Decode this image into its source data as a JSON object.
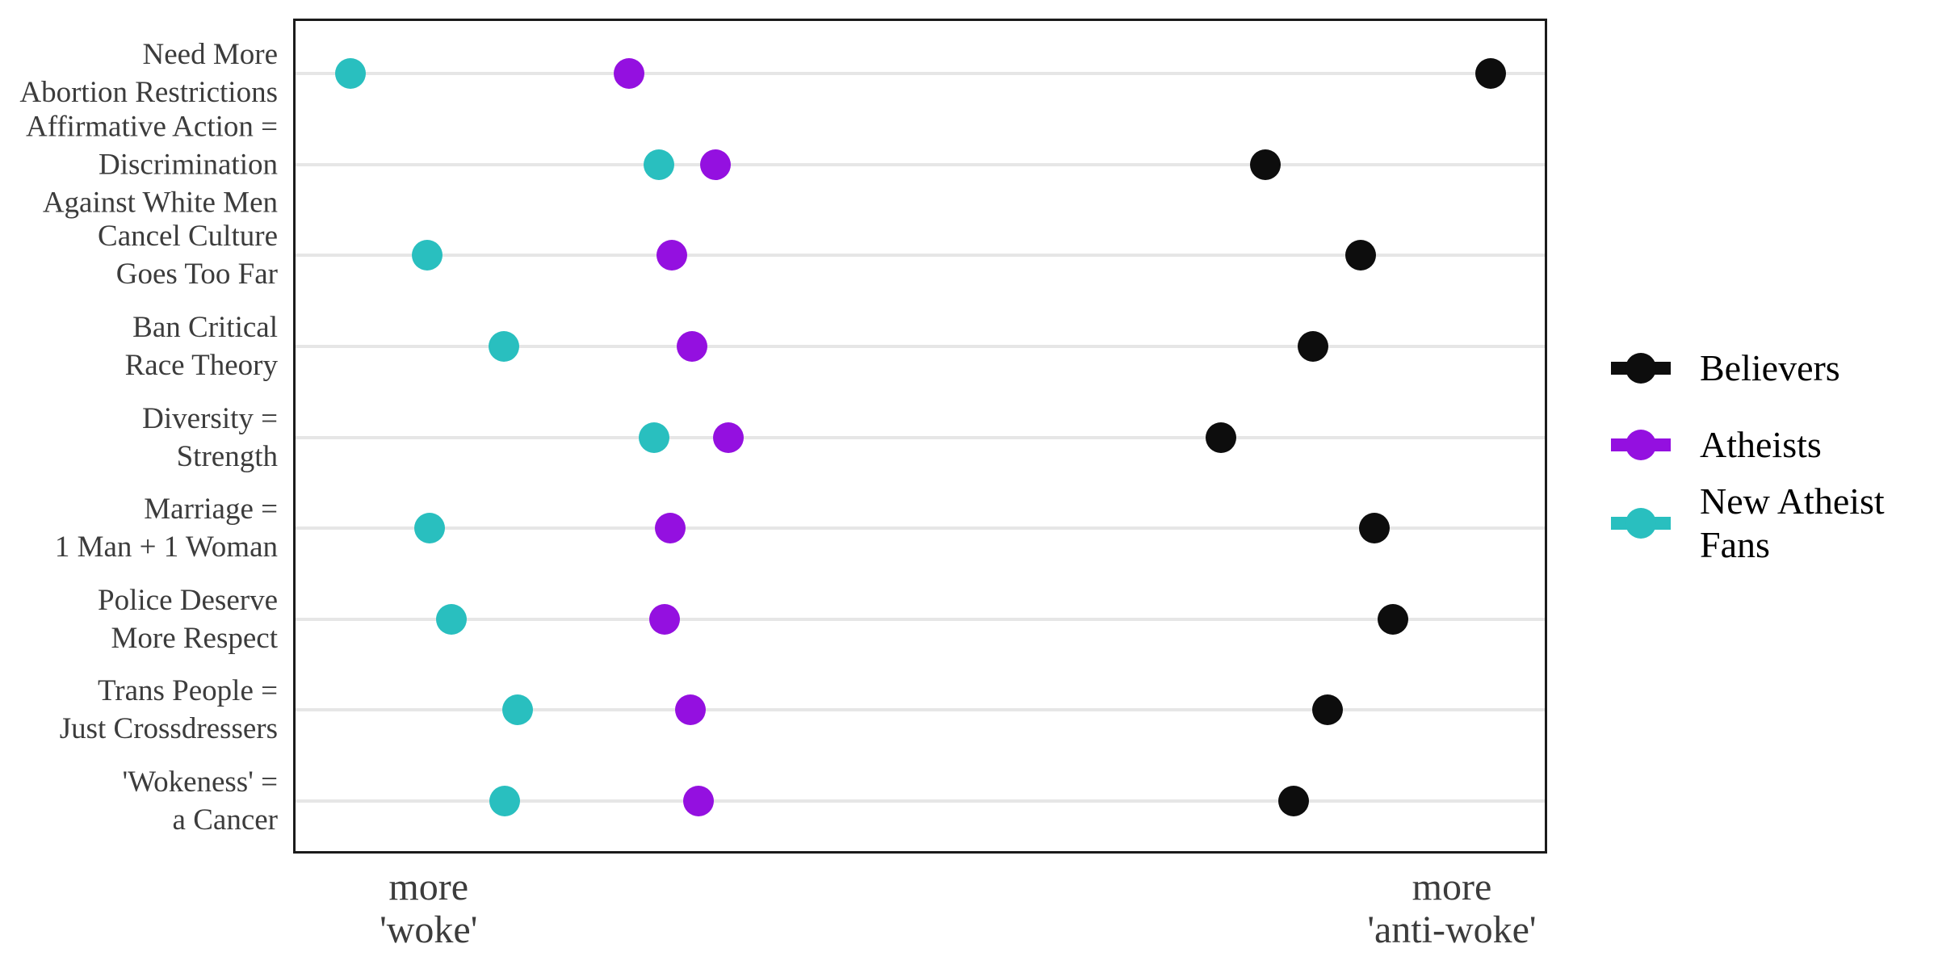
{
  "figure": {
    "background": "#FFFFFF"
  },
  "chart_data": {
    "type": "scatter",
    "variant": "horizontal-dot-plot",
    "title": "",
    "xlabel": "",
    "ylabel": "",
    "x_axis": {
      "range": [
        0,
        1
      ],
      "gridlines": "horizontal major only",
      "tick_labels": [
        {
          "lines": [
            "more",
            "'woke'"
          ],
          "position": 0.108
        },
        {
          "lines": [
            "more",
            "'anti-woke'"
          ],
          "position": 0.924
        }
      ]
    },
    "y_axis": {
      "categories": [
        {
          "lines": [
            "Need More",
            "Abortion Restrictions"
          ]
        },
        {
          "lines": [
            "Affirmative Action =",
            "Discrimination",
            "Against White Men"
          ]
        },
        {
          "lines": [
            "Cancel Culture",
            "Goes Too Far"
          ]
        },
        {
          "lines": [
            "Ban Critical",
            "Race Theory"
          ]
        },
        {
          "lines": [
            "Diversity =",
            "Strength"
          ]
        },
        {
          "lines": [
            "Marriage =",
            "1 Man + 1 Woman"
          ]
        },
        {
          "lines": [
            "Police Deserve",
            "More Respect"
          ]
        },
        {
          "lines": [
            "Trans People =",
            "Just Crossdressers"
          ]
        },
        {
          "lines": [
            "'Wokeness' =",
            "a Cancer"
          ]
        }
      ]
    },
    "series": [
      {
        "name": "Believers",
        "legend_lines": [
          "Believers"
        ],
        "color": "#0D0D0D",
        "values": [
          0.955,
          0.775,
          0.851,
          0.813,
          0.74,
          0.862,
          0.877,
          0.825,
          0.798
        ]
      },
      {
        "name": "Atheists",
        "legend_lines": [
          "Atheists"
        ],
        "color": "#9410E0",
        "values": [
          0.268,
          0.337,
          0.302,
          0.318,
          0.347,
          0.301,
          0.296,
          0.317,
          0.323
        ]
      },
      {
        "name": "New Atheist Fans",
        "legend_lines": [
          "New Atheist",
          "Fans"
        ],
        "color": "#29BFBF",
        "values": [
          0.046,
          0.292,
          0.107,
          0.168,
          0.288,
          0.109,
          0.126,
          0.179,
          0.169
        ]
      }
    ],
    "legend_position": "right",
    "style": {
      "border_color": "#1B1B1B",
      "gridline_color": "#E6E6E6",
      "axis_text_color": "#3C3C3C",
      "legend_text_color": "#000000"
    }
  }
}
